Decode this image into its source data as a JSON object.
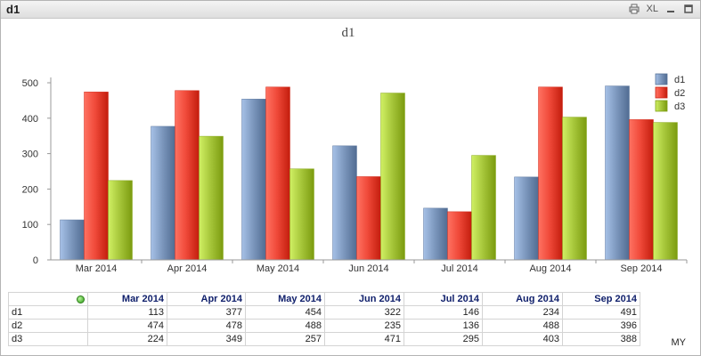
{
  "window": {
    "title": "d1",
    "tools": {
      "xl_label": "XL"
    }
  },
  "chart_data": {
    "type": "bar",
    "title": "d1",
    "categories": [
      "Mar 2014",
      "Apr 2014",
      "May 2014",
      "Jun 2014",
      "Jul 2014",
      "Aug 2014",
      "Sep 2014"
    ],
    "series": [
      {
        "name": "d1",
        "color": "#7e99bf",
        "values": [
          113,
          377,
          454,
          322,
          146,
          234,
          491
        ]
      },
      {
        "name": "d2",
        "color": "#f04a3a",
        "values": [
          474,
          478,
          488,
          235,
          136,
          488,
          396
        ]
      },
      {
        "name": "d3",
        "color": "#a8c83c",
        "values": [
          224,
          349,
          257,
          471,
          295,
          403,
          388
        ]
      }
    ],
    "yticks": [
      "0",
      "100",
      "200",
      "300",
      "400",
      "500"
    ],
    "ylim": [
      0,
      500
    ],
    "legend_position": "top-right",
    "grid": false
  },
  "table": {
    "columns": [
      "Mar 2014",
      "Apr 2014",
      "May 2014",
      "Jun 2014",
      "Jul 2014",
      "Aug 2014",
      "Sep 2014"
    ],
    "rows": [
      {
        "label": "d1",
        "values": [
          "113",
          "377",
          "454",
          "322",
          "146",
          "234",
          "491"
        ]
      },
      {
        "label": "d2",
        "values": [
          "474",
          "478",
          "488",
          "235",
          "136",
          "488",
          "396"
        ]
      },
      {
        "label": "d3",
        "values": [
          "224",
          "349",
          "257",
          "471",
          "295",
          "403",
          "388"
        ]
      }
    ]
  },
  "footer": {
    "tag": "MY"
  }
}
